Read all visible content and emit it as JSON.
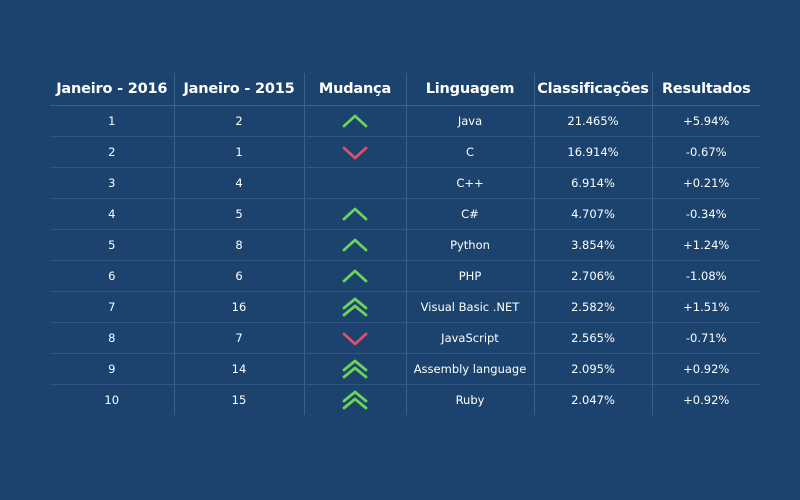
{
  "table": {
    "headers": [
      "Janeiro - 2016",
      "Janeiro - 2015",
      "Mudança",
      "Linguagem",
      "Classificações",
      "Resultados"
    ],
    "rows": [
      {
        "jan2016": "1",
        "jan2015": "2",
        "change": "up",
        "language": "Java",
        "rating": "21.465%",
        "result": "+5.94%"
      },
      {
        "jan2016": "2",
        "jan2015": "1",
        "change": "down",
        "language": "C",
        "rating": "16.914%",
        "result": "-0.67%"
      },
      {
        "jan2016": "3",
        "jan2015": "4",
        "change": "none",
        "language": "C++",
        "rating": "6.914%",
        "result": "+0.21%"
      },
      {
        "jan2016": "4",
        "jan2015": "5",
        "change": "up",
        "language": "C#",
        "rating": "4.707%",
        "result": "-0.34%"
      },
      {
        "jan2016": "5",
        "jan2015": "8",
        "change": "up",
        "language": "Python",
        "rating": "3.854%",
        "result": "+1.24%"
      },
      {
        "jan2016": "6",
        "jan2015": "6",
        "change": "up",
        "language": "PHP",
        "rating": "2.706%",
        "result": "-1.08%"
      },
      {
        "jan2016": "7",
        "jan2015": "16",
        "change": "double-up",
        "language": "Visual Basic .NET",
        "rating": "2.582%",
        "result": "+1.51%"
      },
      {
        "jan2016": "8",
        "jan2015": "7",
        "change": "down",
        "language": "JavaScript",
        "rating": "2.565%",
        "result": "-0.71%"
      },
      {
        "jan2016": "9",
        "jan2015": "14",
        "change": "double-up",
        "language": "Assembly language",
        "rating": "2.095%",
        "result": "+0.92%"
      },
      {
        "jan2016": "10",
        "jan2015": "15",
        "change": "double-up",
        "language": "Ruby",
        "rating": "2.047%",
        "result": "+0.92%"
      }
    ]
  },
  "colors": {
    "background": "#1b436d",
    "up": "#6ed35a",
    "down": "#e0506a"
  },
  "icons": {
    "up": "chevron-up-icon",
    "double-up": "double-chevron-up-icon",
    "down": "chevron-down-icon"
  }
}
